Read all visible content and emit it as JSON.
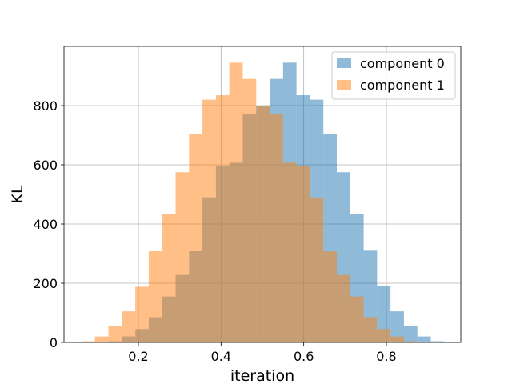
{
  "chart_data": {
    "type": "bar",
    "subtype": "overlapping-histogram",
    "title": "",
    "xlabel": "iteration",
    "ylabel": "KL",
    "xlim": [
      0.02,
      0.98
    ],
    "ylim": [
      0,
      1000
    ],
    "xticks": [
      0.2,
      0.4,
      0.6,
      0.8
    ],
    "yticks": [
      0,
      200,
      400,
      600,
      800
    ],
    "xtick_labels": [
      "0.2",
      "0.4",
      "0.6",
      "0.8"
    ],
    "ytick_labels": [
      "0",
      "200",
      "400",
      "600",
      "800"
    ],
    "grid": true,
    "legend_position": "top-right",
    "bin_width": 0.0325,
    "series": [
      {
        "name": "component 0",
        "color": "#1f77b4",
        "alpha": 0.5,
        "bin_edges": [
          0.0625,
          0.095,
          0.1275,
          0.16,
          0.1925,
          0.225,
          0.2575,
          0.29,
          0.3225,
          0.355,
          0.3875,
          0.42,
          0.4525,
          0.485,
          0.5175,
          0.55,
          0.5825,
          0.615,
          0.6475,
          0.68,
          0.7125,
          0.745,
          0.7775,
          0.81,
          0.8425,
          0.875,
          0.9075,
          0.94
        ],
        "values": [
          0,
          0,
          4,
          20,
          45,
          85,
          155,
          228,
          308,
          490,
          597,
          607,
          770,
          800,
          890,
          945,
          835,
          820,
          705,
          575,
          433,
          310,
          190,
          105,
          55,
          20,
          4
        ]
      },
      {
        "name": "component 1",
        "color": "#ff7f0e",
        "alpha": 0.5,
        "bin_edges": [
          0.0625,
          0.095,
          0.1275,
          0.16,
          0.1925,
          0.225,
          0.2575,
          0.29,
          0.3225,
          0.355,
          0.3875,
          0.42,
          0.4525,
          0.485,
          0.5175,
          0.55,
          0.5825,
          0.615,
          0.6475,
          0.68,
          0.7125,
          0.745,
          0.7775,
          0.81,
          0.8425,
          0.875,
          0.9075,
          0.94
        ],
        "values": [
          4,
          20,
          55,
          105,
          188,
          308,
          433,
          575,
          705,
          820,
          835,
          945,
          890,
          800,
          770,
          607,
          597,
          490,
          308,
          228,
          155,
          85,
          45,
          20,
          4,
          0,
          0
        ]
      }
    ]
  }
}
